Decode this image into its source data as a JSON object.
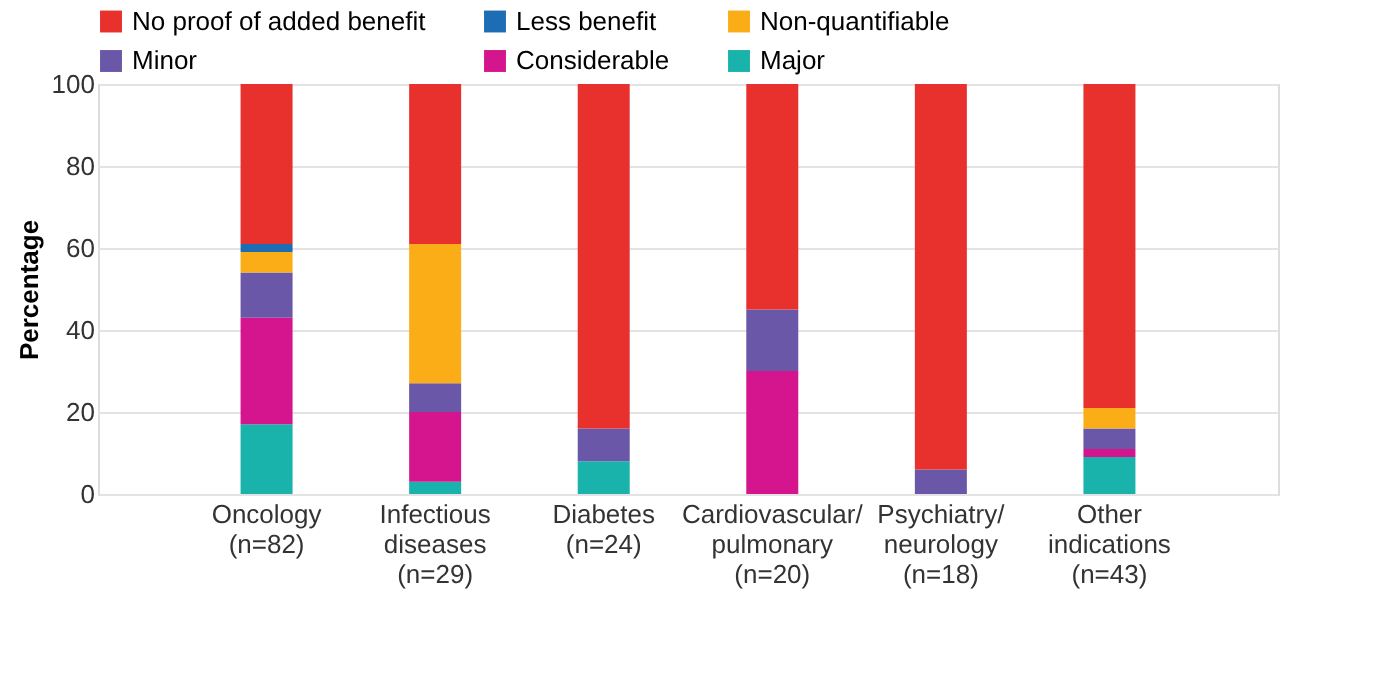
{
  "chart_data": {
    "type": "bar",
    "stacked": true,
    "ylabel": "Percentage",
    "ylim": [
      0,
      100
    ],
    "yticks": [
      0,
      20,
      40,
      60,
      80,
      100
    ],
    "grid": "y",
    "legend": "top",
    "categories": [
      "Oncology\n(n=82)",
      "Infectious\ndiseases\n(n=29)",
      "Diabetes\n(n=24)",
      "Cardiovascular/\npulmonary\n(n=20)",
      "Psychiatry/\nneurology\n(n=18)",
      "Other\nindications\n(n=43)"
    ],
    "series": [
      {
        "name": "Major",
        "color": "#1ab3ac",
        "values": [
          17,
          3,
          8,
          0,
          0,
          9
        ]
      },
      {
        "name": "Considerable",
        "color": "#d4158d",
        "values": [
          26,
          17,
          0,
          30,
          0,
          2
        ]
      },
      {
        "name": "Minor",
        "color": "#6b57a8",
        "values": [
          11,
          7,
          8,
          15,
          6,
          5
        ]
      },
      {
        "name": "Non-quantifiable",
        "color": "#fbad18",
        "values": [
          5,
          34,
          0,
          0,
          0,
          5
        ]
      },
      {
        "name": "Less benefit",
        "color": "#1d6db5",
        "values": [
          2,
          0,
          0,
          0,
          0,
          0
        ]
      },
      {
        "name": "No proof of added benefit",
        "color": "#e8302c",
        "values": [
          39,
          39,
          84,
          55,
          94,
          79
        ]
      }
    ]
  }
}
